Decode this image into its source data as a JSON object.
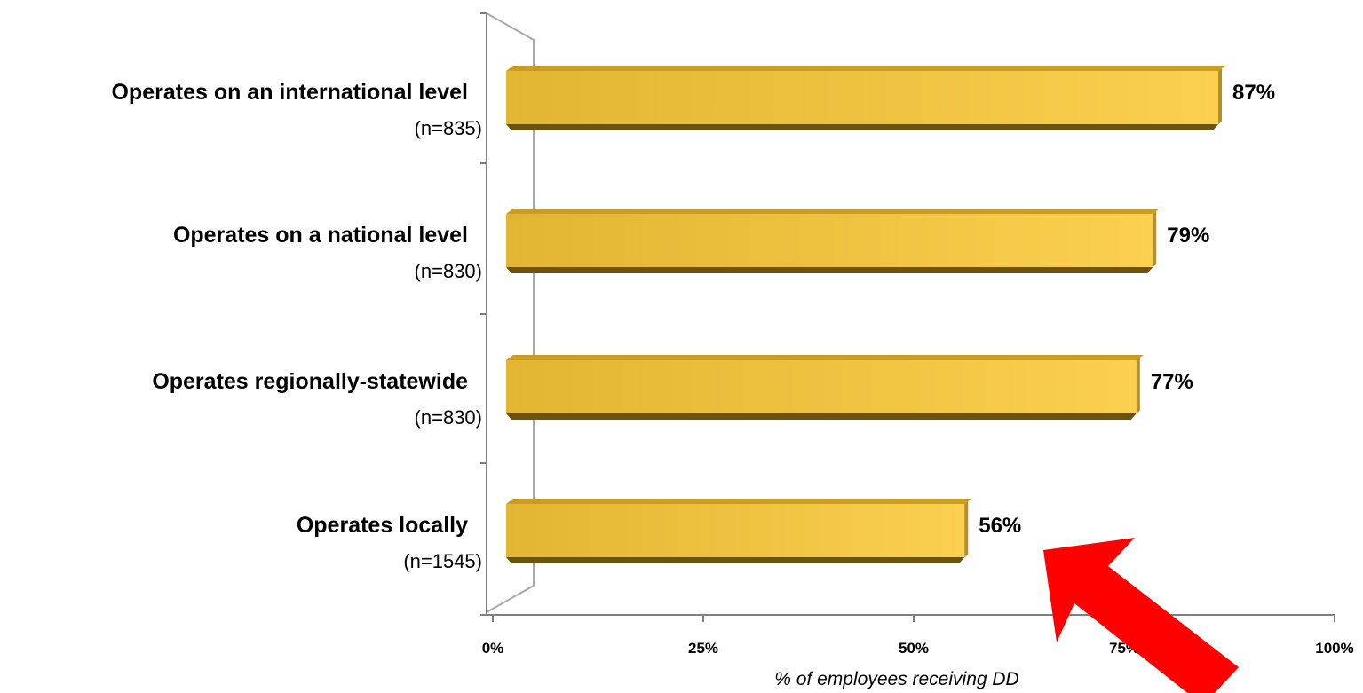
{
  "chart_data": {
    "type": "bar",
    "orientation": "horizontal",
    "categories": [
      {
        "label": "Operates on an international level",
        "n": "(n=835)"
      },
      {
        "label": "Operates on a national level",
        "n": "(n=830)"
      },
      {
        "label": "Operates regionally-statewide",
        "n": "(n=830)"
      },
      {
        "label": "Operates locally",
        "n": "(n=1545)"
      }
    ],
    "values": [
      87,
      79,
      77,
      56
    ],
    "value_labels": [
      "87%",
      "79%",
      "77%",
      "56%"
    ],
    "xlim": [
      0,
      100
    ],
    "xticks": [
      0,
      25,
      50,
      75,
      100
    ],
    "xtick_labels": [
      "0%",
      "25%",
      "50%",
      "75%",
      "100%"
    ],
    "xlabel": "% of employees receiving DD",
    "title": "",
    "bar_color": "#e8b73a",
    "grid": false,
    "annotation": {
      "type": "arrow",
      "color": "#ff0000",
      "direction": "pointing up-left toward the 56% bar"
    }
  }
}
